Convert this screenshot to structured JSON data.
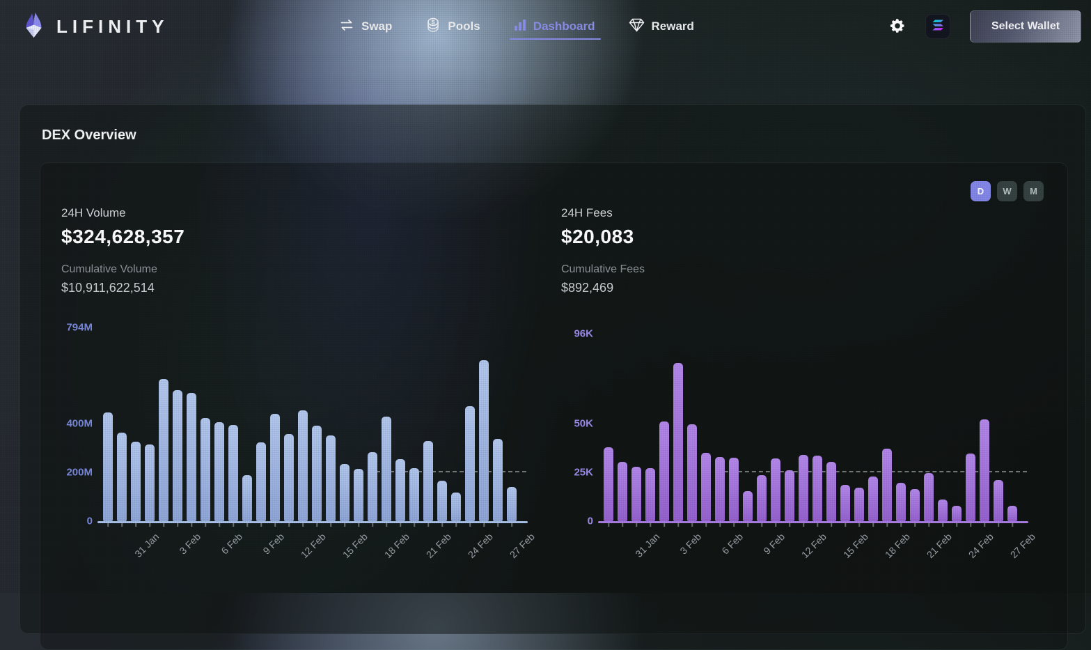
{
  "nav": {
    "brand": "LIFINITY",
    "items": [
      {
        "label": "Swap",
        "icon": "swap-arrows",
        "active": false
      },
      {
        "label": "Pools",
        "icon": "coin-stack",
        "active": false
      },
      {
        "label": "Dashboard",
        "icon": "bar-chart",
        "active": true
      },
      {
        "label": "Reward",
        "icon": "gem",
        "active": false
      }
    ],
    "settings_icon": "gear",
    "network_icon": "solana",
    "wallet_button_label": "Select Wallet"
  },
  "overview": {
    "title": "DEX Overview",
    "range_toggle": {
      "options": [
        "D",
        "W",
        "M"
      ],
      "active": "D"
    },
    "volume_stats": {
      "label": "24H Volume",
      "value": "$324,628,357",
      "cumulative_label": "Cumulative Volume",
      "cumulative_value": "$10,911,622,514"
    },
    "fees_stats": {
      "label": "24H Fees",
      "value": "$20,083",
      "cumulative_label": "Cumulative Fees",
      "cumulative_value": "$892,469"
    }
  },
  "colors": {
    "accent": "#8b8ee8",
    "active_toggle": "#8487e8",
    "volume_bar": "#a7bde8",
    "fees_bar": "#a678dd",
    "volume_axis_label": "#7a89dc",
    "fees_axis_label": "#9c8cea",
    "date_label": "#9ba2a8"
  },
  "chart_data": [
    {
      "type": "bar",
      "name": "daily-volume",
      "title": "24H Volume",
      "unit": "USD millions",
      "unit_suffix": "M",
      "categories_shown": [
        "31 Jan",
        "3 Feb",
        "6 Feb",
        "9 Feb",
        "12 Feb",
        "15 Feb",
        "18 Feb",
        "21 Feb",
        "24 Feb",
        "27 Feb"
      ],
      "tick_start_index": 2,
      "tick_every": 3,
      "values": [
        445,
        362,
        327,
        313,
        583,
        536,
        527,
        423,
        406,
        394,
        190,
        323,
        440,
        357,
        454,
        391,
        351,
        234,
        214,
        283,
        429,
        254,
        217,
        328,
        165,
        116,
        472,
        660,
        338,
        140
      ],
      "ymax": 794,
      "yticks": [
        {
          "label": "794M",
          "value": 794
        },
        {
          "label": "400M",
          "value": 400
        },
        {
          "label": "200M",
          "value": 200
        },
        {
          "label": "0",
          "value": 0
        }
      ],
      "ref_line": {
        "value": 200,
        "x_start_frac": 0.66
      },
      "grid": false,
      "legend": false
    },
    {
      "type": "bar",
      "name": "daily-fees",
      "title": "24H Fees",
      "unit": "USD thousands",
      "unit_suffix": "K",
      "categories_shown": [
        "31 Jan",
        "3 Feb",
        "6 Feb",
        "9 Feb",
        "12 Feb",
        "15 Feb",
        "18 Feb",
        "21 Feb",
        "24 Feb",
        "27 Feb"
      ],
      "tick_start_index": 2,
      "tick_every": 3,
      "values": [
        38,
        30.5,
        28,
        27,
        51,
        81,
        49.5,
        35,
        33,
        32.5,
        15.5,
        23.5,
        32,
        26,
        34,
        33.5,
        30.5,
        18.5,
        17,
        23,
        37,
        19.5,
        16.5,
        24.5,
        11,
        8,
        34.5,
        52,
        21,
        8
      ],
      "ymax": 96,
      "yticks": [
        {
          "label": "96K",
          "value": 96
        },
        {
          "label": "50K",
          "value": 50
        },
        {
          "label": "25K",
          "value": 25
        },
        {
          "label": "0",
          "value": 0
        }
      ],
      "ref_line": {
        "value": 25,
        "x_start_frac": 0.274
      },
      "grid": false,
      "legend": false
    }
  ]
}
